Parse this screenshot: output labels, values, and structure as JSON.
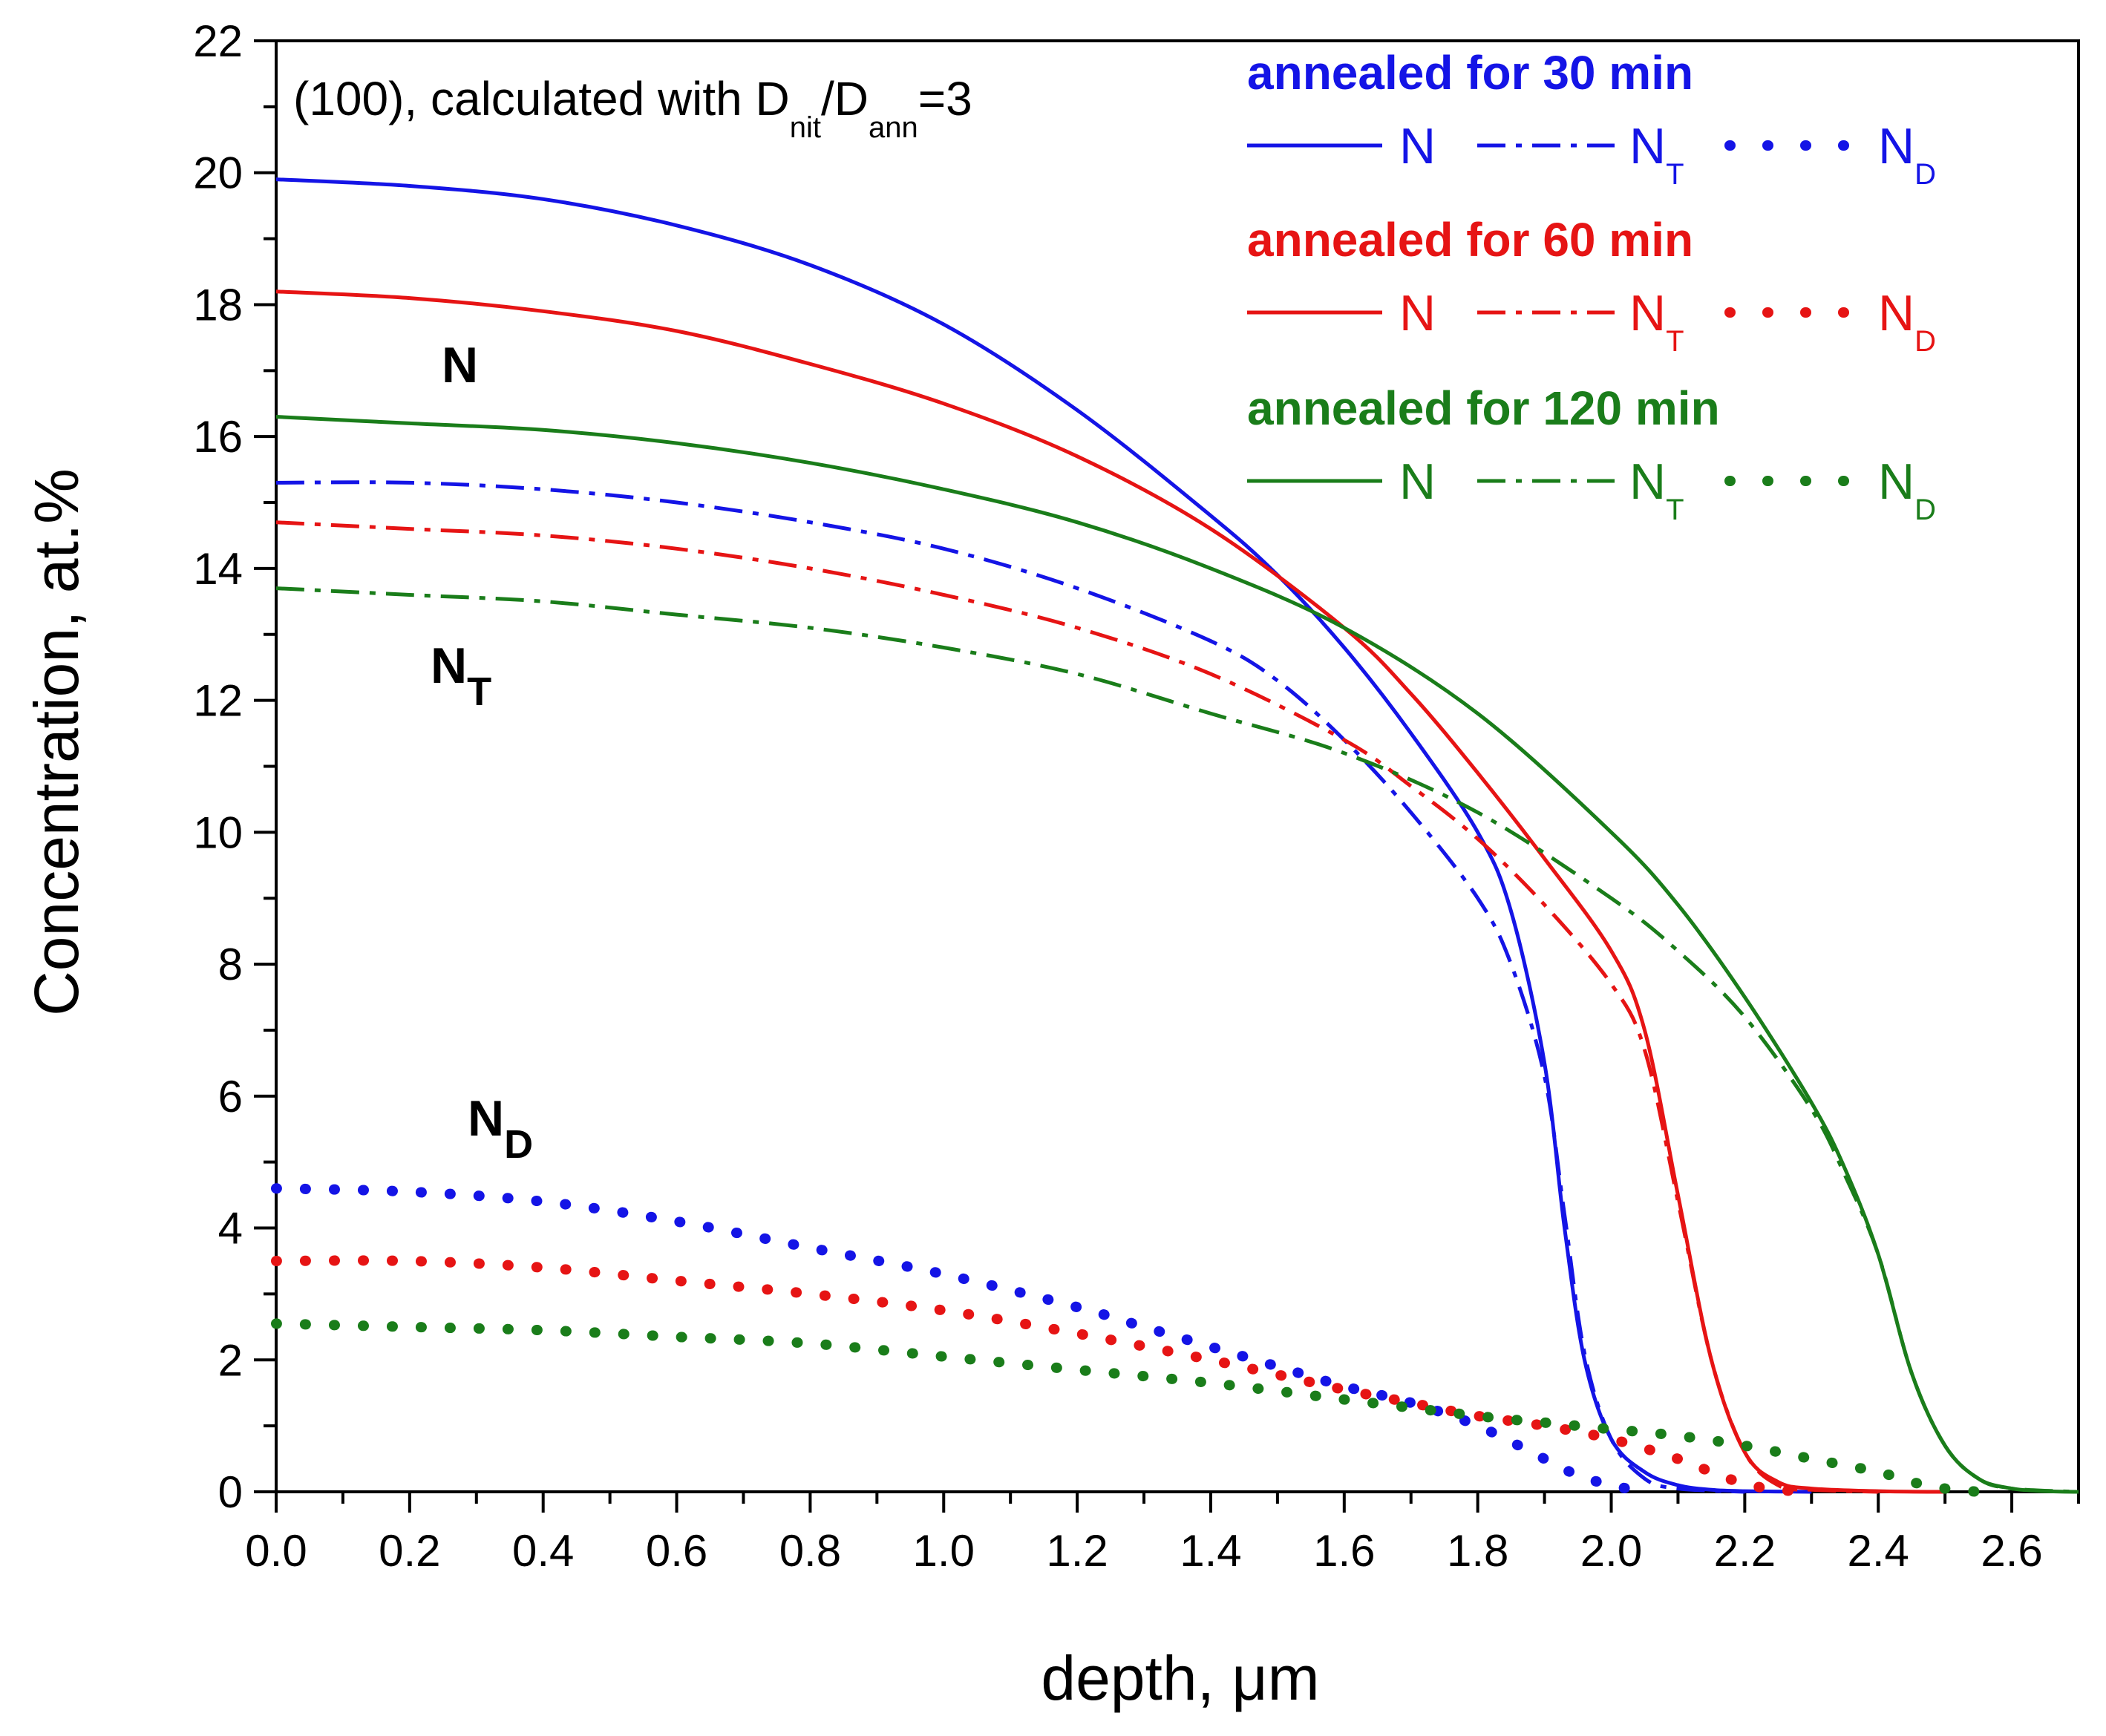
{
  "chart_data": {
    "type": "line",
    "title": "",
    "annotation": {
      "prefix": "(100), calculated with D",
      "sub1": "nit",
      "mid": "/D",
      "sub2": "ann",
      "suffix": "=3"
    },
    "xlabel": "depth, μm",
    "ylabel": "Concentration, at.%",
    "xlim": [
      0.0,
      2.7
    ],
    "ylim": [
      0,
      22
    ],
    "xticks": [
      0.0,
      0.2,
      0.4,
      0.6,
      0.8,
      1.0,
      1.2,
      1.4,
      1.6,
      1.8,
      2.0,
      2.2,
      2.4,
      2.6
    ],
    "xtick_labels": [
      "0.0",
      "0.2",
      "0.4",
      "0.6",
      "0.8",
      "1.0",
      "1.2",
      "1.4",
      "1.6",
      "1.8",
      "2.0",
      "2.2",
      "2.4",
      "2.6"
    ],
    "yticks": [
      0,
      2,
      4,
      6,
      8,
      10,
      12,
      14,
      16,
      18,
      20,
      22
    ],
    "ytick_labels": [
      "0",
      "2",
      "4",
      "6",
      "8",
      "10",
      "12",
      "14",
      "16",
      "18",
      "20",
      "22"
    ],
    "curve_labels": {
      "n": "N",
      "nt_main": "N",
      "nt_sub": "T",
      "nd_main": "N",
      "nd_sub": "D"
    },
    "legend": {
      "placement": "top-right",
      "n_label": "N",
      "nt_main": "N",
      "nt_sub": "T",
      "nd_main": "N",
      "nd_sub": "D",
      "groups": [
        {
          "title": "annealed for 30 min",
          "color": "#1414e6"
        },
        {
          "title": "annealed for 60 min",
          "color": "#e61414"
        },
        {
          "title": "annealed for 120 min",
          "color": "#1a7d1a"
        }
      ]
    },
    "series": [
      {
        "name": "N, 30 min",
        "group": "30 min",
        "kind": "N",
        "color": "#1414e6",
        "style": "solid",
        "x": [
          0.0,
          0.2,
          0.4,
          0.6,
          0.8,
          1.0,
          1.2,
          1.4,
          1.5,
          1.6,
          1.7,
          1.8,
          1.85,
          1.9,
          1.93,
          1.96,
          2.0,
          2.05,
          2.1,
          2.15,
          2.2,
          2.3
        ],
        "y": [
          19.9,
          19.8,
          19.6,
          19.2,
          18.6,
          17.7,
          16.4,
          14.8,
          13.9,
          12.8,
          11.5,
          10.0,
          8.8,
          6.5,
          4.0,
          2.0,
          0.8,
          0.3,
          0.1,
          0.03,
          0.01,
          0.0
        ]
      },
      {
        "name": "N_T, 30 min",
        "group": "30 min",
        "kind": "NT",
        "color": "#1414e6",
        "style": "dashdot",
        "x": [
          0.0,
          0.2,
          0.4,
          0.6,
          0.8,
          1.0,
          1.2,
          1.4,
          1.5,
          1.6,
          1.7,
          1.8,
          1.85,
          1.9,
          1.93,
          1.96,
          2.0,
          2.05,
          2.1,
          2.2
        ],
        "y": [
          15.3,
          15.3,
          15.2,
          15.0,
          14.7,
          14.3,
          13.7,
          12.9,
          12.3,
          11.4,
          10.3,
          9.0,
          8.0,
          6.3,
          4.2,
          2.1,
          0.8,
          0.2,
          0.05,
          0.0
        ]
      },
      {
        "name": "N_D, 30 min",
        "group": "30 min",
        "kind": "ND",
        "color": "#1414e6",
        "style": "dotted",
        "x": [
          0.0,
          0.2,
          0.4,
          0.6,
          0.8,
          1.0,
          1.2,
          1.3,
          1.4,
          1.5,
          1.6,
          1.7,
          1.8,
          1.9,
          1.95,
          2.0,
          2.05
        ],
        "y": [
          4.6,
          4.55,
          4.4,
          4.1,
          3.7,
          3.3,
          2.8,
          2.5,
          2.2,
          1.9,
          1.6,
          1.35,
          1.0,
          0.5,
          0.25,
          0.1,
          0.0
        ]
      },
      {
        "name": "N, 60 min",
        "group": "60 min",
        "kind": "N",
        "color": "#e61414",
        "style": "solid",
        "x": [
          0.0,
          0.2,
          0.4,
          0.6,
          0.8,
          1.0,
          1.2,
          1.4,
          1.6,
          1.7,
          1.8,
          1.9,
          2.0,
          2.05,
          2.1,
          2.15,
          2.2,
          2.25,
          2.3,
          2.4,
          2.5
        ],
        "y": [
          18.2,
          18.1,
          17.9,
          17.6,
          17.1,
          16.5,
          15.7,
          14.6,
          13.1,
          12.1,
          10.9,
          9.6,
          8.2,
          7.0,
          4.5,
          2.0,
          0.6,
          0.15,
          0.05,
          0.01,
          0.0
        ]
      },
      {
        "name": "N_T, 60 min",
        "group": "60 min",
        "kind": "NT",
        "color": "#e61414",
        "style": "dashdot",
        "x": [
          0.0,
          0.2,
          0.4,
          0.6,
          0.8,
          1.0,
          1.2,
          1.4,
          1.6,
          1.7,
          1.8,
          1.9,
          2.0,
          2.05,
          2.1,
          2.15,
          2.2,
          2.25,
          2.3,
          2.4
        ],
        "y": [
          14.7,
          14.6,
          14.5,
          14.3,
          14.0,
          13.6,
          13.1,
          12.4,
          11.4,
          10.7,
          9.9,
          8.9,
          7.7,
          6.7,
          4.4,
          2.0,
          0.6,
          0.1,
          0.03,
          0.0
        ]
      },
      {
        "name": "N_D, 60 min",
        "group": "60 min",
        "kind": "ND",
        "color": "#e61414",
        "style": "dotted",
        "x": [
          0.0,
          0.2,
          0.4,
          0.6,
          0.8,
          1.0,
          1.2,
          1.4,
          1.6,
          1.7,
          1.8,
          1.9,
          2.0,
          2.1,
          2.15,
          2.2,
          2.25,
          2.3
        ],
        "y": [
          3.5,
          3.5,
          3.4,
          3.2,
          3.0,
          2.75,
          2.4,
          2.0,
          1.55,
          1.35,
          1.15,
          1.0,
          0.8,
          0.5,
          0.3,
          0.12,
          0.03,
          0.0
        ]
      },
      {
        "name": "N, 120 min",
        "group": "120 min",
        "kind": "N",
        "color": "#1a7d1a",
        "style": "solid",
        "x": [
          0.0,
          0.2,
          0.4,
          0.6,
          0.8,
          1.0,
          1.2,
          1.4,
          1.6,
          1.8,
          2.0,
          2.1,
          2.2,
          2.3,
          2.35,
          2.4,
          2.45,
          2.5,
          2.55,
          2.6,
          2.65,
          2.7
        ],
        "y": [
          16.3,
          16.2,
          16.1,
          15.9,
          15.6,
          15.2,
          14.7,
          14.0,
          13.1,
          11.8,
          10.0,
          8.9,
          7.5,
          5.9,
          4.9,
          3.6,
          1.8,
          0.7,
          0.2,
          0.05,
          0.01,
          0.0
        ]
      },
      {
        "name": "N_T, 120 min",
        "group": "120 min",
        "kind": "NT",
        "color": "#1a7d1a",
        "style": "dashdot",
        "x": [
          0.0,
          0.2,
          0.4,
          0.6,
          0.8,
          1.0,
          1.2,
          1.4,
          1.6,
          1.8,
          2.0,
          2.1,
          2.2,
          2.3,
          2.35,
          2.4,
          2.45,
          2.5,
          2.55,
          2.6,
          2.7
        ],
        "y": [
          13.7,
          13.6,
          13.5,
          13.3,
          13.1,
          12.8,
          12.4,
          11.8,
          11.2,
          10.3,
          9.0,
          8.2,
          7.2,
          5.8,
          4.8,
          3.6,
          1.8,
          0.7,
          0.2,
          0.05,
          0.0
        ]
      },
      {
        "name": "N_D, 120 min",
        "group": "120 min",
        "kind": "ND",
        "color": "#1a7d1a",
        "style": "dotted",
        "x": [
          0.0,
          0.2,
          0.4,
          0.6,
          0.8,
          1.0,
          1.2,
          1.4,
          1.6,
          1.8,
          1.9,
          2.0,
          2.1,
          2.2,
          2.3,
          2.4,
          2.45,
          2.5,
          2.55
        ],
        "y": [
          2.55,
          2.5,
          2.45,
          2.35,
          2.25,
          2.05,
          1.85,
          1.65,
          1.4,
          1.15,
          1.05,
          0.95,
          0.85,
          0.7,
          0.5,
          0.3,
          0.15,
          0.05,
          0.0
        ]
      }
    ]
  }
}
